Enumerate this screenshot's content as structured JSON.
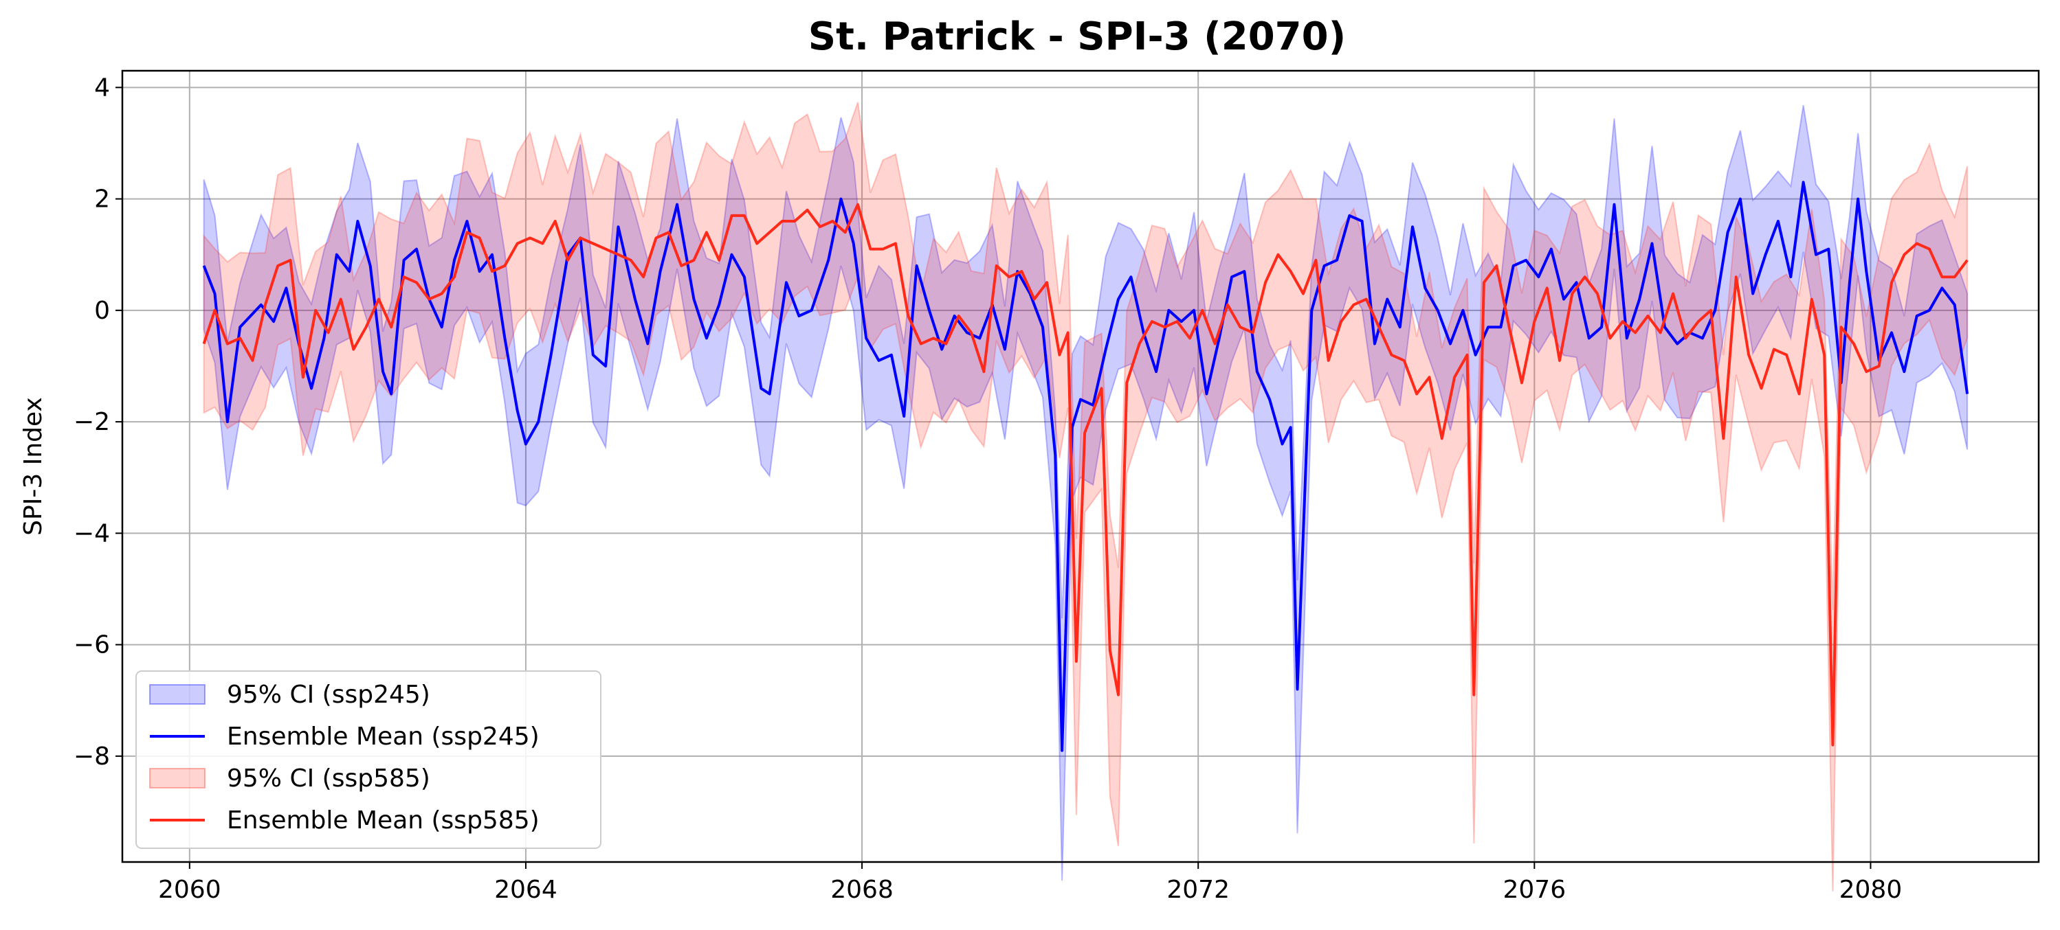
{
  "chart_data": {
    "type": "line",
    "title": "St. Patrick - SPI-3 (2070)",
    "xlabel": "",
    "ylabel": "SPI-3 Index",
    "xlim": [
      2059.2,
      2082.0
    ],
    "ylim": [
      -9.9,
      4.3
    ],
    "grid": true,
    "legend_position": "lower-left",
    "xticks": [
      2060,
      2064,
      2068,
      2072,
      2076,
      2080
    ],
    "xtick_labels": [
      "2060",
      "2064",
      "2068",
      "2072",
      "2076",
      "2080"
    ],
    "yticks": [
      4,
      2,
      0,
      -2,
      -4,
      -6,
      -8
    ],
    "ytick_labels": [
      "4",
      "2",
      "0",
      "−2",
      "−4",
      "−6",
      "−8"
    ],
    "legend": [
      {
        "label": "95% CI (ssp245)",
        "kind": "band",
        "color": "#0000ff"
      },
      {
        "label": "Ensemble Mean (ssp245)",
        "kind": "line",
        "color": "#0000ff"
      },
      {
        "label": "95% CI (ssp585)",
        "kind": "band",
        "color": "#ff2a1a"
      },
      {
        "label": "Ensemble Mean (ssp585)",
        "kind": "line",
        "color": "#ff2a1a"
      }
    ],
    "series": [
      {
        "name": "Ensemble Mean (ssp245)",
        "color": "#0000ff",
        "ci_spread": 1.3,
        "points": [
          [
            2060.17,
            0.8
          ],
          [
            2060.3,
            0.3
          ],
          [
            2060.45,
            -2.0
          ],
          [
            2060.6,
            -0.3
          ],
          [
            2060.85,
            0.1
          ],
          [
            2061.0,
            -0.2
          ],
          [
            2061.15,
            0.4
          ],
          [
            2061.3,
            -0.6
          ],
          [
            2061.45,
            -1.4
          ],
          [
            2061.6,
            -0.5
          ],
          [
            2061.75,
            1.0
          ],
          [
            2061.9,
            0.7
          ],
          [
            2062.0,
            1.6
          ],
          [
            2062.15,
            0.8
          ],
          [
            2062.3,
            -1.1
          ],
          [
            2062.4,
            -1.5
          ],
          [
            2062.55,
            0.9
          ],
          [
            2062.7,
            1.1
          ],
          [
            2062.85,
            0.2
          ],
          [
            2063.0,
            -0.3
          ],
          [
            2063.15,
            0.9
          ],
          [
            2063.3,
            1.6
          ],
          [
            2063.45,
            0.7
          ],
          [
            2063.6,
            1.0
          ],
          [
            2063.75,
            -0.5
          ],
          [
            2063.9,
            -1.8
          ],
          [
            2064.0,
            -2.4
          ],
          [
            2064.15,
            -2.0
          ],
          [
            2064.3,
            -0.8
          ],
          [
            2064.5,
            1.0
          ],
          [
            2064.65,
            1.3
          ],
          [
            2064.8,
            -0.8
          ],
          [
            2064.95,
            -1.0
          ],
          [
            2065.1,
            1.5
          ],
          [
            2065.3,
            0.2
          ],
          [
            2065.45,
            -0.6
          ],
          [
            2065.6,
            0.7
          ],
          [
            2065.8,
            1.9
          ],
          [
            2066.0,
            0.2
          ],
          [
            2066.15,
            -0.5
          ],
          [
            2066.3,
            0.1
          ],
          [
            2066.45,
            1.0
          ],
          [
            2066.6,
            0.6
          ],
          [
            2066.8,
            -1.4
          ],
          [
            2066.9,
            -1.5
          ],
          [
            2067.1,
            0.5
          ],
          [
            2067.25,
            -0.1
          ],
          [
            2067.4,
            0.0
          ],
          [
            2067.6,
            0.9
          ],
          [
            2067.75,
            2.0
          ],
          [
            2067.9,
            1.2
          ],
          [
            2068.05,
            -0.5
          ],
          [
            2068.2,
            -0.9
          ],
          [
            2068.35,
            -0.8
          ],
          [
            2068.5,
            -1.9
          ],
          [
            2068.65,
            0.8
          ],
          [
            2068.8,
            0.0
          ],
          [
            2068.95,
            -0.7
          ],
          [
            2069.1,
            -0.1
          ],
          [
            2069.25,
            -0.4
          ],
          [
            2069.4,
            -0.5
          ],
          [
            2069.55,
            0.1
          ],
          [
            2069.7,
            -0.7
          ],
          [
            2069.85,
            0.7
          ],
          [
            2070.0,
            0.3
          ],
          [
            2070.15,
            -0.3
          ],
          [
            2070.3,
            -2.6
          ],
          [
            2070.38,
            -7.9
          ],
          [
            2070.5,
            -2.1
          ],
          [
            2070.6,
            -1.6
          ],
          [
            2070.75,
            -1.7
          ],
          [
            2070.9,
            -0.7
          ],
          [
            2071.05,
            0.2
          ],
          [
            2071.2,
            0.6
          ],
          [
            2071.35,
            -0.4
          ],
          [
            2071.5,
            -1.1
          ],
          [
            2071.65,
            0.0
          ],
          [
            2071.8,
            -0.2
          ],
          [
            2071.95,
            0.0
          ],
          [
            2072.1,
            -1.5
          ],
          [
            2072.25,
            -0.5
          ],
          [
            2072.4,
            0.6
          ],
          [
            2072.55,
            0.7
          ],
          [
            2072.7,
            -1.1
          ],
          [
            2072.85,
            -1.6
          ],
          [
            2073.0,
            -2.4
          ],
          [
            2073.1,
            -2.1
          ],
          [
            2073.18,
            -6.8
          ],
          [
            2073.35,
            0.0
          ],
          [
            2073.5,
            0.8
          ],
          [
            2073.65,
            0.9
          ],
          [
            2073.8,
            1.7
          ],
          [
            2073.95,
            1.6
          ],
          [
            2074.1,
            -0.6
          ],
          [
            2074.25,
            0.2
          ],
          [
            2074.4,
            -0.3
          ],
          [
            2074.55,
            1.5
          ],
          [
            2074.7,
            0.4
          ],
          [
            2074.85,
            0.0
          ],
          [
            2075.0,
            -0.6
          ],
          [
            2075.15,
            0.0
          ],
          [
            2075.3,
            -0.8
          ],
          [
            2075.45,
            -0.3
          ],
          [
            2075.6,
            -0.3
          ],
          [
            2075.75,
            0.8
          ],
          [
            2075.9,
            0.9
          ],
          [
            2076.05,
            0.6
          ],
          [
            2076.2,
            1.1
          ],
          [
            2076.35,
            0.2
          ],
          [
            2076.5,
            0.5
          ],
          [
            2076.65,
            -0.5
          ],
          [
            2076.8,
            -0.3
          ],
          [
            2076.95,
            1.9
          ],
          [
            2077.1,
            -0.5
          ],
          [
            2077.25,
            0.2
          ],
          [
            2077.4,
            1.2
          ],
          [
            2077.55,
            -0.3
          ],
          [
            2077.7,
            -0.6
          ],
          [
            2077.85,
            -0.4
          ],
          [
            2078.0,
            -0.5
          ],
          [
            2078.15,
            0.0
          ],
          [
            2078.3,
            1.4
          ],
          [
            2078.45,
            2.0
          ],
          [
            2078.6,
            0.3
          ],
          [
            2078.75,
            1.0
          ],
          [
            2078.9,
            1.6
          ],
          [
            2079.05,
            0.6
          ],
          [
            2079.2,
            2.3
          ],
          [
            2079.35,
            1.0
          ],
          [
            2079.5,
            1.1
          ],
          [
            2079.65,
            -1.3
          ],
          [
            2079.75,
            0.5
          ],
          [
            2079.85,
            2.0
          ],
          [
            2079.95,
            0.7
          ],
          [
            2080.1,
            -0.9
          ],
          [
            2080.25,
            -0.4
          ],
          [
            2080.4,
            -1.1
          ],
          [
            2080.55,
            -0.1
          ],
          [
            2080.7,
            0.0
          ],
          [
            2080.85,
            0.4
          ],
          [
            2081.0,
            0.1
          ],
          [
            2081.15,
            -1.5
          ]
        ]
      },
      {
        "name": "Ensemble Mean (ssp585)",
        "color": "#ff2a1a",
        "ci_spread": 1.5,
        "points": [
          [
            2060.17,
            -0.6
          ],
          [
            2060.3,
            0.0
          ],
          [
            2060.45,
            -0.6
          ],
          [
            2060.6,
            -0.5
          ],
          [
            2060.75,
            -0.9
          ],
          [
            2060.9,
            0.1
          ],
          [
            2061.05,
            0.8
          ],
          [
            2061.2,
            0.9
          ],
          [
            2061.35,
            -1.2
          ],
          [
            2061.5,
            0.0
          ],
          [
            2061.65,
            -0.4
          ],
          [
            2061.8,
            0.2
          ],
          [
            2061.95,
            -0.7
          ],
          [
            2062.1,
            -0.3
          ],
          [
            2062.25,
            0.2
          ],
          [
            2062.4,
            -0.3
          ],
          [
            2062.55,
            0.6
          ],
          [
            2062.7,
            0.5
          ],
          [
            2062.85,
            0.2
          ],
          [
            2063.0,
            0.3
          ],
          [
            2063.15,
            0.6
          ],
          [
            2063.3,
            1.4
          ],
          [
            2063.45,
            1.3
          ],
          [
            2063.6,
            0.7
          ],
          [
            2063.75,
            0.8
          ],
          [
            2063.9,
            1.2
          ],
          [
            2064.05,
            1.3
          ],
          [
            2064.2,
            1.2
          ],
          [
            2064.35,
            1.6
          ],
          [
            2064.5,
            0.9
          ],
          [
            2064.65,
            1.3
          ],
          [
            2064.8,
            1.2
          ],
          [
            2064.95,
            1.1
          ],
          [
            2065.1,
            1.0
          ],
          [
            2065.25,
            0.9
          ],
          [
            2065.4,
            0.6
          ],
          [
            2065.55,
            1.3
          ],
          [
            2065.7,
            1.4
          ],
          [
            2065.85,
            0.8
          ],
          [
            2066.0,
            0.9
          ],
          [
            2066.15,
            1.4
          ],
          [
            2066.3,
            0.9
          ],
          [
            2066.45,
            1.7
          ],
          [
            2066.6,
            1.7
          ],
          [
            2066.75,
            1.2
          ],
          [
            2066.9,
            1.4
          ],
          [
            2067.05,
            1.6
          ],
          [
            2067.2,
            1.6
          ],
          [
            2067.35,
            1.8
          ],
          [
            2067.5,
            1.5
          ],
          [
            2067.65,
            1.6
          ],
          [
            2067.8,
            1.4
          ],
          [
            2067.95,
            1.9
          ],
          [
            2068.1,
            1.1
          ],
          [
            2068.25,
            1.1
          ],
          [
            2068.4,
            1.2
          ],
          [
            2068.55,
            -0.1
          ],
          [
            2068.7,
            -0.6
          ],
          [
            2068.85,
            -0.5
          ],
          [
            2069.0,
            -0.6
          ],
          [
            2069.15,
            -0.1
          ],
          [
            2069.3,
            -0.4
          ],
          [
            2069.45,
            -1.1
          ],
          [
            2069.6,
            0.8
          ],
          [
            2069.75,
            0.6
          ],
          [
            2069.9,
            0.7
          ],
          [
            2070.05,
            0.2
          ],
          [
            2070.2,
            0.5
          ],
          [
            2070.35,
            -0.8
          ],
          [
            2070.45,
            -0.4
          ],
          [
            2070.55,
            -6.3
          ],
          [
            2070.65,
            -2.2
          ],
          [
            2070.85,
            -1.4
          ],
          [
            2070.95,
            -6.1
          ],
          [
            2071.05,
            -6.9
          ],
          [
            2071.15,
            -1.3
          ],
          [
            2071.3,
            -0.6
          ],
          [
            2071.45,
            -0.2
          ],
          [
            2071.6,
            -0.3
          ],
          [
            2071.75,
            -0.2
          ],
          [
            2071.9,
            -0.5
          ],
          [
            2072.05,
            0.0
          ],
          [
            2072.2,
            -0.6
          ],
          [
            2072.35,
            0.1
          ],
          [
            2072.5,
            -0.3
          ],
          [
            2072.65,
            -0.4
          ],
          [
            2072.8,
            0.5
          ],
          [
            2072.95,
            1.0
          ],
          [
            2073.1,
            0.7
          ],
          [
            2073.25,
            0.3
          ],
          [
            2073.4,
            0.9
          ],
          [
            2073.55,
            -0.9
          ],
          [
            2073.7,
            -0.2
          ],
          [
            2073.85,
            0.1
          ],
          [
            2074.0,
            0.2
          ],
          [
            2074.15,
            -0.3
          ],
          [
            2074.3,
            -0.8
          ],
          [
            2074.45,
            -0.9
          ],
          [
            2074.6,
            -1.5
          ],
          [
            2074.75,
            -1.2
          ],
          [
            2074.9,
            -2.3
          ],
          [
            2075.05,
            -1.2
          ],
          [
            2075.2,
            -0.8
          ],
          [
            2075.28,
            -6.9
          ],
          [
            2075.4,
            0.5
          ],
          [
            2075.55,
            0.8
          ],
          [
            2075.7,
            -0.3
          ],
          [
            2075.85,
            -1.3
          ],
          [
            2076.0,
            -0.2
          ],
          [
            2076.15,
            0.4
          ],
          [
            2076.3,
            -0.9
          ],
          [
            2076.45,
            0.3
          ],
          [
            2076.6,
            0.6
          ],
          [
            2076.75,
            0.3
          ],
          [
            2076.9,
            -0.5
          ],
          [
            2077.05,
            -0.2
          ],
          [
            2077.2,
            -0.4
          ],
          [
            2077.35,
            -0.1
          ],
          [
            2077.5,
            -0.4
          ],
          [
            2077.65,
            0.3
          ],
          [
            2077.8,
            -0.5
          ],
          [
            2077.95,
            -0.2
          ],
          [
            2078.1,
            0.0
          ],
          [
            2078.25,
            -2.3
          ],
          [
            2078.4,
            0.6
          ],
          [
            2078.55,
            -0.8
          ],
          [
            2078.7,
            -1.4
          ],
          [
            2078.85,
            -0.7
          ],
          [
            2079.0,
            -0.8
          ],
          [
            2079.15,
            -1.5
          ],
          [
            2079.3,
            0.2
          ],
          [
            2079.45,
            -0.8
          ],
          [
            2079.55,
            -7.8
          ],
          [
            2079.65,
            -0.3
          ],
          [
            2079.8,
            -0.6
          ],
          [
            2079.95,
            -1.1
          ],
          [
            2080.1,
            -1.0
          ],
          [
            2080.25,
            0.5
          ],
          [
            2080.4,
            1.0
          ],
          [
            2080.55,
            1.2
          ],
          [
            2080.7,
            1.1
          ],
          [
            2080.85,
            0.6
          ],
          [
            2081.0,
            0.6
          ],
          [
            2081.15,
            0.9
          ]
        ]
      }
    ]
  }
}
